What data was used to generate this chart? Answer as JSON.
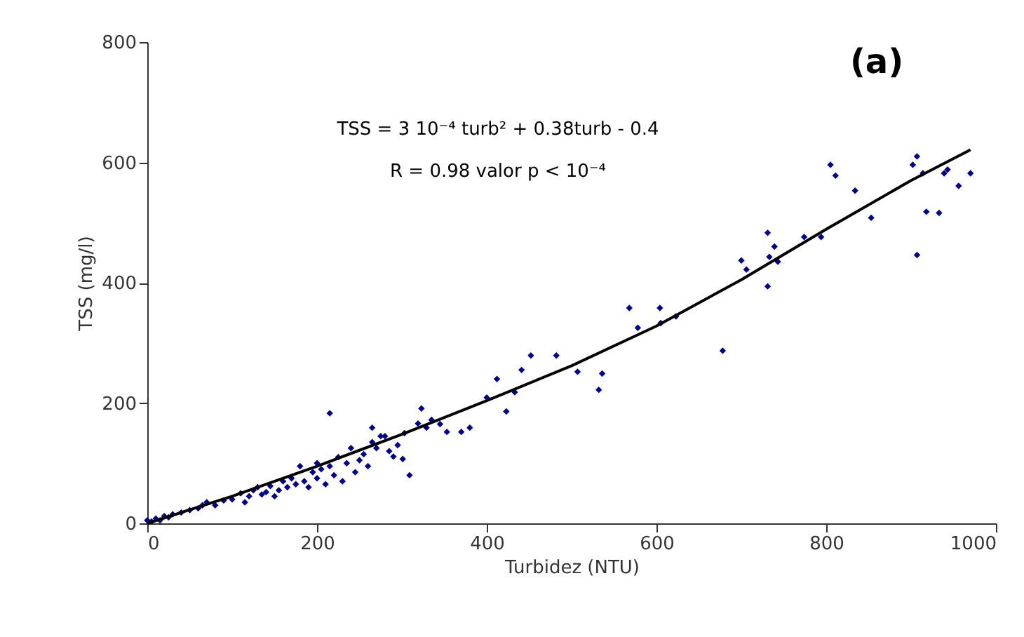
{
  "chart_data": {
    "type": "scatter",
    "xlabel": "Turbidez (NTU)",
    "ylabel": "TSS (mg/l)",
    "xlim": [
      0,
      1000
    ],
    "xticks": [
      0,
      200,
      400,
      600,
      800,
      1000
    ],
    "ylim": [
      0,
      800
    ],
    "yticks": [
      0,
      200,
      400,
      600,
      800
    ],
    "grid": false,
    "marker": "diamond",
    "annotations": [
      "(a)",
      "TSS = 3 10⁻⁴ turb² + 0.38turb - 0.4",
      "R = 0.98 valor p < 10⁻⁴"
    ],
    "series": [
      {
        "color": "#00008b",
        "x": [
          0,
          5,
          10,
          15,
          20,
          25,
          30,
          40,
          50,
          60,
          65,
          70,
          80,
          90,
          100,
          110,
          115,
          120,
          125,
          130,
          135,
          140,
          145,
          150,
          155,
          160,
          165,
          170,
          175,
          180,
          185,
          190,
          195,
          200,
          200,
          205,
          210,
          215,
          220,
          225,
          230,
          235,
          240,
          245,
          250,
          255,
          260,
          265,
          270,
          280,
          285,
          295,
          335,
          345,
          215,
          265,
          275,
          290,
          301,
          303,
          309,
          319,
          323,
          329,
          353,
          370,
          380,
          400,
          412,
          423,
          433,
          441,
          452,
          482,
          507,
          532,
          536,
          568,
          578,
          604,
          605,
          623,
          678,
          700,
          706,
          731,
          731,
          733,
          739,
          743,
          774,
          794,
          805,
          811,
          834,
          853,
          902,
          907,
          907,
          914,
          918,
          933,
          939,
          943,
          956,
          970
        ],
        "values": [
          5,
          3,
          8,
          5,
          12,
          10,
          15,
          18,
          22,
          25,
          30,
          35,
          30,
          38,
          40,
          50,
          35,
          45,
          55,
          60,
          48,
          52,
          62,
          45,
          55,
          70,
          60,
          75,
          65,
          95,
          70,
          60,
          85,
          100,
          75,
          90,
          65,
          95,
          80,
          110,
          70,
          100,
          125,
          85,
          105,
          115,
          95,
          135,
          125,
          145,
          120,
          130,
          172,
          165,
          183,
          159,
          145,
          111,
          107,
          150,
          80,
          166,
          191,
          159,
          152,
          152,
          159,
          209,
          240,
          186,
          218,
          255,
          279,
          279,
          252,
          222,
          249,
          358,
          325,
          358,
          333,
          344,
          287,
          437,
          422,
          483,
          394,
          443,
          460,
          435,
          476,
          476,
          596,
          578,
          553,
          508,
          596,
          610,
          446,
          582,
          518,
          516,
          582,
          588,
          561,
          582
        ]
      },
      {
        "type": "line",
        "color": "#000000",
        "line_style": "solid",
        "marker": "none",
        "x": [
          0,
          100,
          200,
          300,
          400,
          500,
          600,
          700,
          800,
          900,
          970
        ],
        "values": [
          0,
          45,
          95,
          148,
          204,
          262,
          328,
          405,
          489,
          570,
          621
        ]
      }
    ]
  }
}
